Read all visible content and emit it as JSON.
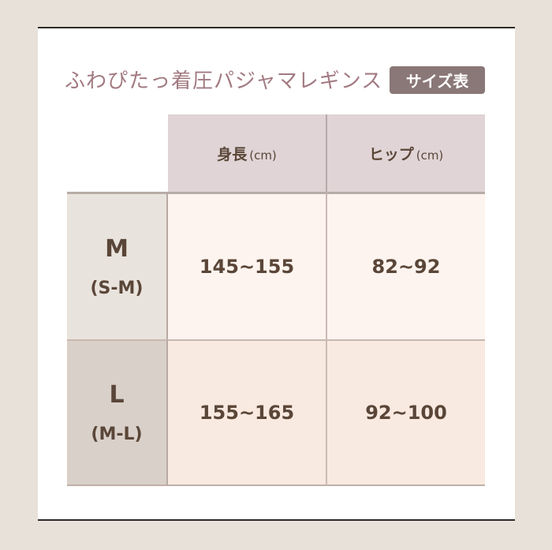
{
  "title": "ふわぴたっ着圧パジャマレギンス",
  "badge": "サイズ表",
  "table": {
    "headers": [
      {
        "label": "身長",
        "unit": "(cm)"
      },
      {
        "label": "ヒップ",
        "unit": "(cm)"
      }
    ],
    "rows": [
      {
        "size": "M",
        "range": "(S-M)",
        "height": "145~155",
        "hip": "82~92"
      },
      {
        "size": "L",
        "range": "(M-L)",
        "height": "155~165",
        "hip": "92~100"
      }
    ]
  },
  "colors": {
    "background": "#e7e1d9",
    "header": "#e0d4d6",
    "badge": "#8a7777",
    "title": "#a27a82",
    "text": "#5a4638"
  }
}
